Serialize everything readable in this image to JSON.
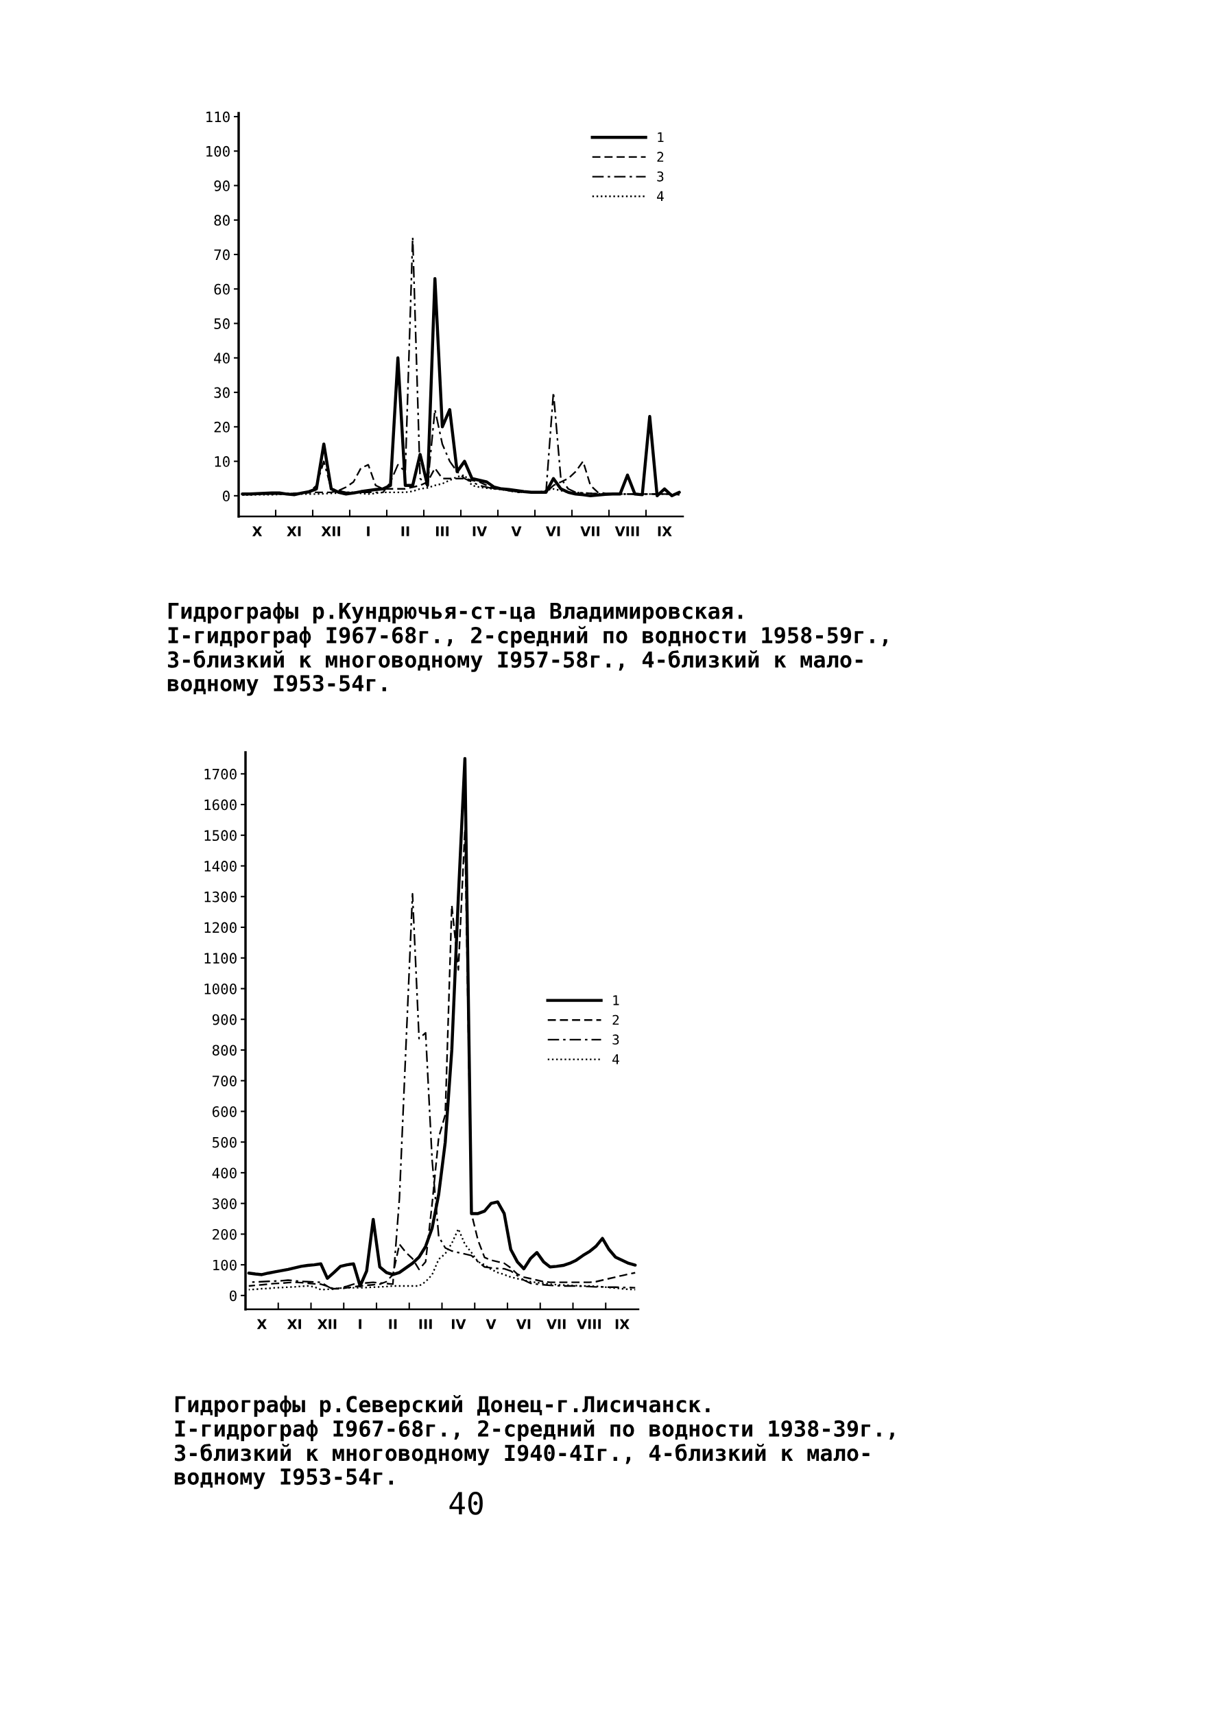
{
  "chart_data": [
    {
      "type": "line",
      "categories": [
        null,
        null,
        "X",
        null,
        null,
        null,
        null,
        "XI",
        null,
        null,
        null,
        null,
        "XII",
        null,
        null,
        null,
        null,
        "I",
        null,
        null,
        null,
        null,
        "II",
        null,
        null,
        null,
        null,
        "III",
        null,
        null,
        null,
        null,
        "IV",
        null,
        null,
        null,
        null,
        "V",
        null,
        null,
        null,
        null,
        "VI",
        null,
        null,
        null,
        null,
        "VII",
        null,
        null,
        null,
        null,
        "VIII",
        null,
        null,
        null,
        null,
        "IX",
        null,
        null
      ],
      "ylim": [
        -6,
        111
      ],
      "yticks": [
        0,
        10,
        20,
        30,
        40,
        50,
        60,
        70,
        80,
        90,
        100,
        110
      ],
      "legend": "top right",
      "annotations": [
        "Гидрографы р.Кундрючья-ст-ца Владимировская.\nI-гидрограф I967-68г., 2-средний по водности 1958-59г.,\n3-близкий к многоводному I957-58г., 4-близкий к мало-\nводному I953-54г."
      ],
      "series": [
        {
          "name": "1",
          "color": "#000000",
          "line_style": "solid",
          "values": [
            0.5,
            0.5,
            0.6,
            0.7,
            0.8,
            0.8,
            0.5,
            0.3,
            0.8,
            1.2,
            2,
            15,
            2,
            1,
            0.5,
            0.8,
            1.2,
            1.5,
            1.8,
            2,
            3,
            40,
            3,
            3,
            12,
            3,
            63,
            20,
            25,
            7,
            10,
            5,
            4.5,
            4,
            2.5,
            2,
            1.8,
            1.5,
            1.2,
            1,
            1,
            1,
            5,
            2,
            1,
            0.5,
            0.3,
            0,
            0.2,
            0.4,
            0.5,
            0.5,
            6,
            0.5,
            0.3,
            23,
            0,
            2,
            0,
            1
          ]
        },
        {
          "name": "2",
          "color": "#000000",
          "line_style": "dashed",
          "values": [
            0.5,
            0.5,
            0.5,
            0.5,
            0.5,
            0.5,
            0.6,
            0.7,
            0.8,
            0.9,
            1,
            1,
            1,
            1.5,
            2.5,
            4,
            8,
            9,
            3,
            2,
            2,
            2,
            2,
            2.5,
            3,
            4,
            8,
            5,
            5,
            5,
            5,
            4.5,
            4,
            3,
            2,
            2,
            1.5,
            1.2,
            1,
            1,
            1,
            1,
            3,
            4,
            5,
            7,
            10,
            3,
            1,
            0.7,
            0.5,
            0.5,
            0.5,
            0.5,
            0.5,
            0.5,
            0.5,
            0.5,
            0.5,
            0.5
          ]
        },
        {
          "name": "3",
          "color": "#000000",
          "line_style": "dashdot",
          "values": [
            0.3,
            0.4,
            0.4,
            0.5,
            0.5,
            0.5,
            0.6,
            0.7,
            0.8,
            1,
            3,
            10,
            2,
            1.5,
            1,
            1,
            1,
            1,
            1,
            1,
            4,
            9,
            7,
            75,
            5,
            3,
            25,
            15,
            10,
            7,
            5,
            4,
            3,
            2.5,
            2,
            2,
            1.5,
            1,
            1,
            1,
            1,
            1,
            30,
            5,
            2,
            1,
            0.8,
            0.7,
            0.6,
            0.5,
            0.5,
            0.5,
            0.5,
            0.5,
            0.5,
            0.5,
            0.5,
            0.5,
            0.5,
            0.3
          ]
        },
        {
          "name": "4",
          "color": "#000000",
          "line_style": "dotted",
          "values": [
            0.2,
            0.2,
            0.3,
            0.3,
            0.3,
            0.4,
            0.4,
            0.4,
            0.5,
            0.5,
            0.5,
            0.6,
            0.7,
            0.8,
            1,
            1,
            0.7,
            0.5,
            0.7,
            1,
            1,
            1,
            1,
            1.3,
            2,
            2.3,
            3,
            3.5,
            4.5,
            5.5,
            6,
            3,
            2.5,
            2.2,
            2,
            1.8,
            1.5,
            1.3,
            1.2,
            1,
            1,
            1.5,
            2,
            1.5,
            1,
            1,
            0.8,
            0.7,
            0.6,
            0.5,
            0.5,
            0.5,
            0.5,
            0.5,
            0.5,
            0.5,
            0.5,
            0.5,
            0.5,
            0.3
          ]
        }
      ]
    },
    {
      "type": "line",
      "categories": [
        null,
        null,
        "X",
        null,
        null,
        null,
        null,
        "XI",
        null,
        null,
        null,
        null,
        "XII",
        null,
        null,
        null,
        null,
        "I",
        null,
        null,
        null,
        null,
        "II",
        null,
        null,
        null,
        null,
        "III",
        null,
        null,
        null,
        null,
        "IV",
        null,
        null,
        null,
        null,
        "V",
        null,
        null,
        null,
        null,
        "VI",
        null,
        null,
        null,
        null,
        "VII",
        null,
        null,
        null,
        null,
        "VIII",
        null,
        null,
        null,
        null,
        "IX",
        null,
        null
      ],
      "ylim": [
        -45,
        1770
      ],
      "yticks": [
        0,
        100,
        200,
        300,
        400,
        500,
        600,
        700,
        800,
        900,
        1000,
        1100,
        1200,
        1300,
        1400,
        1500,
        1600,
        1700
      ],
      "legend": "right",
      "annotations": [
        "Гидрографы р.Северский Донец-г.Лисичанск.\nI-гидрограф I967-68г., 2-средний по водности 1938-39г.,\n3-близкий к многоводному I940-4Iг., 4-близкий к мало-\nводному I953-54г.",
        "40"
      ],
      "series": [
        {
          "name": "1",
          "color": "#000000",
          "line_style": "solid",
          "values": [
            73,
            70,
            68,
            73,
            77,
            81,
            85,
            90,
            95,
            98,
            100,
            103,
            56,
            75,
            95,
            100,
            103,
            31,
            80,
            248,
            93,
            75,
            68,
            75,
            90,
            105,
            125,
            160,
            220,
            330,
            500,
            800,
            1300,
            1750,
            267,
            267,
            275,
            300,
            305,
            267,
            150,
            110,
            87,
            120,
            140,
            110,
            93,
            95,
            98,
            105,
            115,
            130,
            143,
            160,
            186,
            150,
            125,
            115,
            105,
            99
          ]
        },
        {
          "name": "2",
          "color": "#000000",
          "line_style": "dashed",
          "values": [
            31,
            33,
            35,
            37,
            39,
            40,
            42,
            43,
            42,
            40,
            38,
            37,
            30,
            22,
            22,
            25,
            28,
            31,
            33,
            35,
            37,
            45,
            68,
            167,
            140,
            120,
            85,
            110,
            300,
            515,
            589,
            1272,
            1061,
            1520,
            267,
            180,
            124,
            115,
            110,
            105,
            90,
            70,
            60,
            55,
            50,
            45,
            43,
            43,
            43,
            43,
            43,
            43,
            43,
            45,
            50,
            55,
            60,
            65,
            70,
            74
          ]
        },
        {
          "name": "3",
          "color": "#000000",
          "line_style": "dashdot",
          "values": [
            43,
            44,
            45,
            46,
            47,
            48,
            50,
            48,
            46,
            45,
            44,
            43,
            30,
            19,
            25,
            30,
            37,
            39,
            41,
            43,
            41,
            39,
            37,
            316,
            813,
            1309,
            837,
            856,
            440,
            192,
            155,
            145,
            140,
            135,
            130,
            110,
            93,
            90,
            88,
            87,
            80,
            65,
            50,
            40,
            37,
            35,
            33,
            32,
            31,
            31,
            31,
            30,
            29,
            28,
            28,
            27,
            27,
            26,
            26,
            25
          ]
        },
        {
          "name": "4",
          "color": "#000000",
          "line_style": "dotted",
          "values": [
            19,
            20,
            22,
            23,
            25,
            26,
            27,
            28,
            30,
            31,
            28,
            19,
            20,
            22,
            24,
            25,
            25,
            25,
            26,
            27,
            28,
            29,
            31,
            31,
            31,
            31,
            31,
            45,
            68,
            118,
            136,
            170,
            217,
            167,
            140,
            110,
            100,
            85,
            75,
            68,
            60,
            55,
            50,
            45,
            42,
            40,
            37,
            35,
            34,
            33,
            32,
            31,
            31,
            30,
            28,
            26,
            24,
            22,
            20,
            19
          ]
        }
      ]
    }
  ]
}
